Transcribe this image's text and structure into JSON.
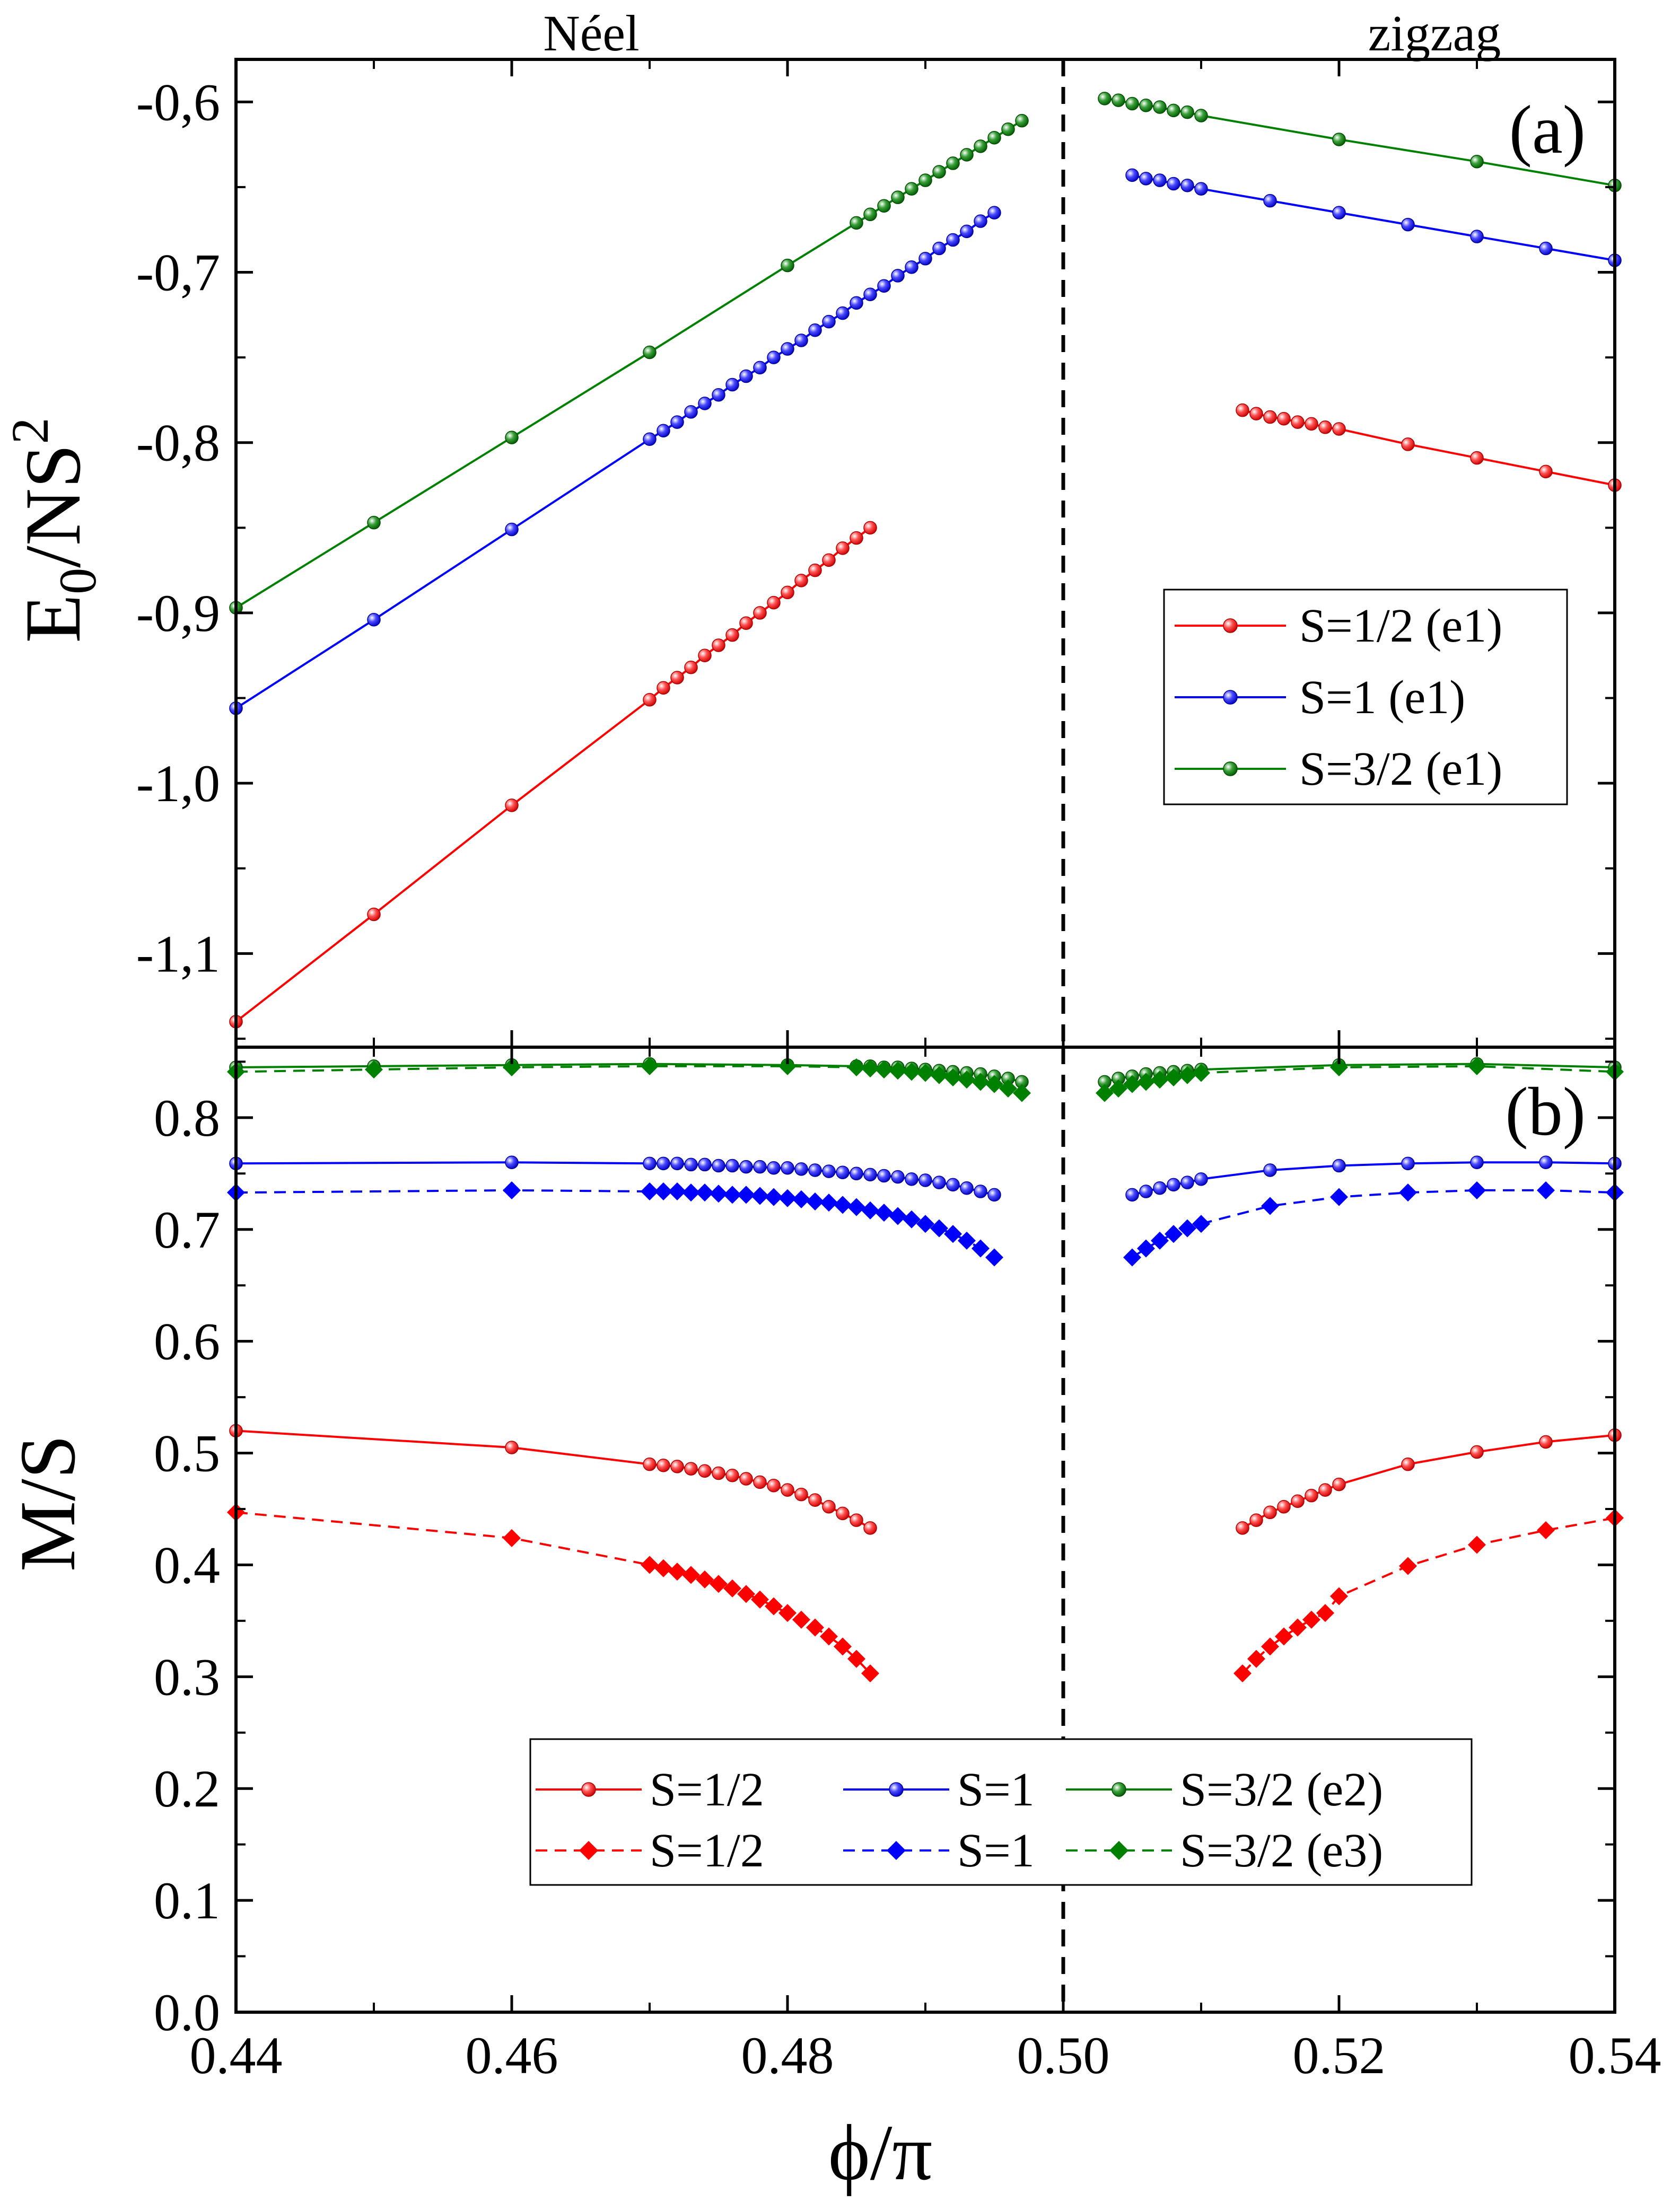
{
  "header": {
    "left": "Néel",
    "right": "zigzag"
  },
  "xaxis": {
    "label_main": "ϕ/π",
    "ticks": [
      "0.44",
      "0.46",
      "0.48",
      "0.50",
      "0.52",
      "0.54"
    ],
    "tick_values": [
      0.44,
      0.46,
      0.48,
      0.5,
      0.52,
      0.54
    ]
  },
  "colors": {
    "red": "#ff0000",
    "blue": "#0000ff",
    "green": "#008000"
  },
  "chart_data": [
    {
      "type": "line",
      "panel_label": "(a)",
      "ylabel": "E0/NS^2",
      "ylabel_parts": {
        "base": "E",
        "sub": "0",
        "mid": "/NS",
        "sup": "2"
      },
      "xlim": [
        0.44,
        0.54
      ],
      "ylim": [
        -1.155,
        -0.575
      ],
      "yticks": [
        -1.1,
        -1.0,
        -0.9,
        -0.8,
        -0.7,
        -0.6
      ],
      "ytick_labels": [
        "-1,1",
        "-1,0",
        "-0,9",
        "-0,8",
        "-0,7",
        "-0,6"
      ],
      "divider_x": 0.5,
      "legend": [
        "S=1/2 (e1)",
        "S=1 (e1)",
        "S=3/2 (e1)"
      ],
      "series": [
        {
          "name": "S=1/2 (e1)",
          "color": "red",
          "style": "solid",
          "marker": "circle",
          "x": [
            0.44,
            0.45,
            0.46,
            0.47,
            0.471,
            0.472,
            0.473,
            0.474,
            0.475,
            0.476,
            0.477,
            0.478,
            0.479,
            0.48,
            0.481,
            0.482,
            0.483,
            0.484,
            0.485,
            0.486,
            0.513,
            0.514,
            0.515,
            0.516,
            0.517,
            0.518,
            0.519,
            0.52,
            0.525,
            0.53,
            0.535,
            0.54
          ],
          "y": [
            -1.14,
            -1.077,
            -1.013,
            -0.951,
            -0.944,
            -0.938,
            -0.932,
            -0.925,
            -0.919,
            -0.913,
            -0.906,
            -0.9,
            -0.894,
            -0.888,
            -0.881,
            -0.875,
            -0.869,
            -0.862,
            -0.856,
            -0.85,
            -0.781,
            -0.783,
            -0.785,
            -0.786,
            -0.788,
            -0.789,
            -0.791,
            -0.792,
            -0.801,
            -0.809,
            -0.817,
            -0.825
          ]
        },
        {
          "name": "S=1 (e1)",
          "color": "blue",
          "style": "solid",
          "marker": "circle",
          "x": [
            0.44,
            0.45,
            0.46,
            0.47,
            0.471,
            0.472,
            0.473,
            0.474,
            0.475,
            0.476,
            0.477,
            0.478,
            0.479,
            0.48,
            0.481,
            0.482,
            0.483,
            0.484,
            0.485,
            0.486,
            0.487,
            0.488,
            0.489,
            0.49,
            0.491,
            0.492,
            0.493,
            0.494,
            0.495,
            0.505,
            0.506,
            0.507,
            0.508,
            0.509,
            0.51,
            0.515,
            0.52,
            0.525,
            0.53,
            0.535,
            0.54
          ],
          "y": [
            -0.956,
            -0.904,
            -0.851,
            -0.798,
            -0.793,
            -0.788,
            -0.782,
            -0.777,
            -0.772,
            -0.766,
            -0.761,
            -0.756,
            -0.75,
            -0.745,
            -0.74,
            -0.734,
            -0.729,
            -0.724,
            -0.718,
            -0.713,
            -0.708,
            -0.702,
            -0.697,
            -0.692,
            -0.686,
            -0.681,
            -0.676,
            -0.67,
            -0.665,
            -0.643,
            -0.645,
            -0.646,
            -0.648,
            -0.649,
            -0.651,
            -0.658,
            -0.665,
            -0.672,
            -0.679,
            -0.686,
            -0.693
          ]
        },
        {
          "name": "S=3/2 (e1)",
          "color": "green",
          "style": "solid",
          "marker": "circle",
          "x": [
            0.44,
            0.45,
            0.46,
            0.47,
            0.48,
            0.485,
            0.486,
            0.487,
            0.488,
            0.489,
            0.49,
            0.491,
            0.492,
            0.493,
            0.494,
            0.495,
            0.496,
            0.497,
            0.503,
            0.504,
            0.505,
            0.506,
            0.507,
            0.508,
            0.509,
            0.51,
            0.52,
            0.53,
            0.54
          ],
          "y": [
            -0.897,
            -0.847,
            -0.797,
            -0.747,
            -0.696,
            -0.671,
            -0.666,
            -0.661,
            -0.656,
            -0.651,
            -0.646,
            -0.641,
            -0.636,
            -0.631,
            -0.626,
            -0.621,
            -0.616,
            -0.611,
            -0.598,
            -0.599,
            -0.601,
            -0.602,
            -0.603,
            -0.605,
            -0.606,
            -0.608,
            -0.622,
            -0.635,
            -0.649
          ]
        }
      ]
    },
    {
      "type": "line",
      "panel_label": "(b)",
      "ylabel": "M/S",
      "xlim": [
        0.44,
        0.54
      ],
      "ylim": [
        0.0,
        0.863
      ],
      "yticks": [
        0.0,
        0.1,
        0.2,
        0.3,
        0.4,
        0.5,
        0.6,
        0.7,
        0.8
      ],
      "ytick_labels": [
        "0.0",
        "0.1",
        "0.2",
        "0.3",
        "0.4",
        "0.5",
        "0.6",
        "0.7",
        "0.8"
      ],
      "divider_x": 0.5,
      "legend_rows": [
        [
          "S=1/2",
          "S=1",
          "S=3/2 (e2)"
        ],
        [
          "S=1/2",
          "S=1",
          "S=3/2 (e3)"
        ]
      ],
      "series": [
        {
          "name": "S=1/2 (e2)",
          "color": "red",
          "style": "solid",
          "marker": "circle",
          "x": [
            0.44,
            0.46,
            0.47,
            0.471,
            0.472,
            0.473,
            0.474,
            0.475,
            0.476,
            0.477,
            0.478,
            0.479,
            0.48,
            0.481,
            0.482,
            0.483,
            0.484,
            0.485,
            0.486,
            0.513,
            0.514,
            0.515,
            0.516,
            0.517,
            0.518,
            0.519,
            0.52,
            0.525,
            0.53,
            0.535,
            0.54
          ],
          "y": [
            0.52,
            0.505,
            0.49,
            0.489,
            0.488,
            0.486,
            0.484,
            0.482,
            0.48,
            0.477,
            0.474,
            0.471,
            0.467,
            0.463,
            0.458,
            0.452,
            0.446,
            0.44,
            0.433,
            0.433,
            0.44,
            0.447,
            0.452,
            0.457,
            0.462,
            0.467,
            0.472,
            0.49,
            0.501,
            0.51,
            0.516
          ]
        },
        {
          "name": "S=1 (e2)",
          "color": "blue",
          "style": "solid",
          "marker": "circle",
          "x": [
            0.44,
            0.46,
            0.47,
            0.471,
            0.472,
            0.473,
            0.474,
            0.475,
            0.476,
            0.477,
            0.478,
            0.479,
            0.48,
            0.481,
            0.482,
            0.483,
            0.484,
            0.485,
            0.486,
            0.487,
            0.488,
            0.489,
            0.49,
            0.491,
            0.492,
            0.493,
            0.494,
            0.495,
            0.505,
            0.506,
            0.507,
            0.508,
            0.509,
            0.51,
            0.515,
            0.52,
            0.525,
            0.53,
            0.535,
            0.54
          ],
          "y": [
            0.759,
            0.76,
            0.759,
            0.759,
            0.759,
            0.758,
            0.758,
            0.757,
            0.757,
            0.756,
            0.756,
            0.755,
            0.755,
            0.754,
            0.753,
            0.752,
            0.751,
            0.75,
            0.749,
            0.748,
            0.747,
            0.745,
            0.744,
            0.742,
            0.74,
            0.737,
            0.734,
            0.731,
            0.731,
            0.734,
            0.737,
            0.74,
            0.742,
            0.745,
            0.753,
            0.757,
            0.759,
            0.76,
            0.76,
            0.759
          ]
        },
        {
          "name": "S=3/2 (e2)",
          "color": "green",
          "style": "solid",
          "marker": "circle",
          "x": [
            0.44,
            0.45,
            0.46,
            0.47,
            0.48,
            0.485,
            0.486,
            0.487,
            0.488,
            0.489,
            0.49,
            0.491,
            0.492,
            0.493,
            0.494,
            0.495,
            0.496,
            0.497,
            0.503,
            0.504,
            0.505,
            0.506,
            0.507,
            0.508,
            0.509,
            0.51,
            0.52,
            0.53,
            0.54
          ],
          "y": [
            0.845,
            0.846,
            0.847,
            0.848,
            0.847,
            0.846,
            0.846,
            0.845,
            0.845,
            0.844,
            0.843,
            0.842,
            0.841,
            0.84,
            0.839,
            0.837,
            0.835,
            0.832,
            0.832,
            0.835,
            0.837,
            0.839,
            0.84,
            0.841,
            0.842,
            0.843,
            0.847,
            0.848,
            0.845
          ]
        },
        {
          "name": "S=1/2 (e3)",
          "color": "red",
          "style": "dashed",
          "marker": "diamond",
          "x": [
            0.44,
            0.46,
            0.47,
            0.471,
            0.472,
            0.473,
            0.474,
            0.475,
            0.476,
            0.477,
            0.478,
            0.479,
            0.48,
            0.481,
            0.482,
            0.483,
            0.484,
            0.485,
            0.486,
            0.513,
            0.514,
            0.515,
            0.516,
            0.517,
            0.518,
            0.519,
            0.52,
            0.525,
            0.53,
            0.535,
            0.54
          ],
          "y": [
            0.447,
            0.424,
            0.4,
            0.397,
            0.394,
            0.391,
            0.387,
            0.383,
            0.379,
            0.374,
            0.369,
            0.363,
            0.357,
            0.351,
            0.344,
            0.336,
            0.327,
            0.316,
            0.303,
            0.303,
            0.316,
            0.327,
            0.336,
            0.344,
            0.351,
            0.357,
            0.372,
            0.399,
            0.418,
            0.431,
            0.442
          ]
        },
        {
          "name": "S=1 (e3)",
          "color": "blue",
          "style": "dashed",
          "marker": "diamond",
          "x": [
            0.44,
            0.46,
            0.47,
            0.471,
            0.472,
            0.473,
            0.474,
            0.475,
            0.476,
            0.477,
            0.478,
            0.479,
            0.48,
            0.481,
            0.482,
            0.483,
            0.484,
            0.485,
            0.486,
            0.487,
            0.488,
            0.489,
            0.49,
            0.491,
            0.492,
            0.493,
            0.494,
            0.495,
            0.505,
            0.506,
            0.507,
            0.508,
            0.509,
            0.51,
            0.515,
            0.52,
            0.525,
            0.53,
            0.535,
            0.54
          ],
          "y": [
            0.733,
            0.735,
            0.734,
            0.734,
            0.734,
            0.733,
            0.733,
            0.732,
            0.731,
            0.731,
            0.73,
            0.729,
            0.728,
            0.727,
            0.725,
            0.724,
            0.722,
            0.72,
            0.717,
            0.715,
            0.712,
            0.709,
            0.705,
            0.701,
            0.696,
            0.69,
            0.683,
            0.675,
            0.675,
            0.683,
            0.69,
            0.696,
            0.701,
            0.705,
            0.721,
            0.729,
            0.733,
            0.735,
            0.735,
            0.733
          ]
        },
        {
          "name": "S=3/2 (e3)",
          "color": "green",
          "style": "dashed",
          "marker": "diamond",
          "x": [
            0.44,
            0.45,
            0.46,
            0.47,
            0.48,
            0.485,
            0.486,
            0.487,
            0.488,
            0.489,
            0.49,
            0.491,
            0.492,
            0.493,
            0.494,
            0.495,
            0.496,
            0.497,
            0.503,
            0.504,
            0.505,
            0.506,
            0.507,
            0.508,
            0.509,
            0.51,
            0.52,
            0.53,
            0.54
          ],
          "y": [
            0.841,
            0.843,
            0.845,
            0.846,
            0.846,
            0.845,
            0.844,
            0.843,
            0.842,
            0.841,
            0.84,
            0.838,
            0.836,
            0.834,
            0.832,
            0.83,
            0.826,
            0.822,
            0.822,
            0.826,
            0.83,
            0.832,
            0.834,
            0.836,
            0.838,
            0.84,
            0.845,
            0.846,
            0.841
          ]
        }
      ]
    }
  ]
}
